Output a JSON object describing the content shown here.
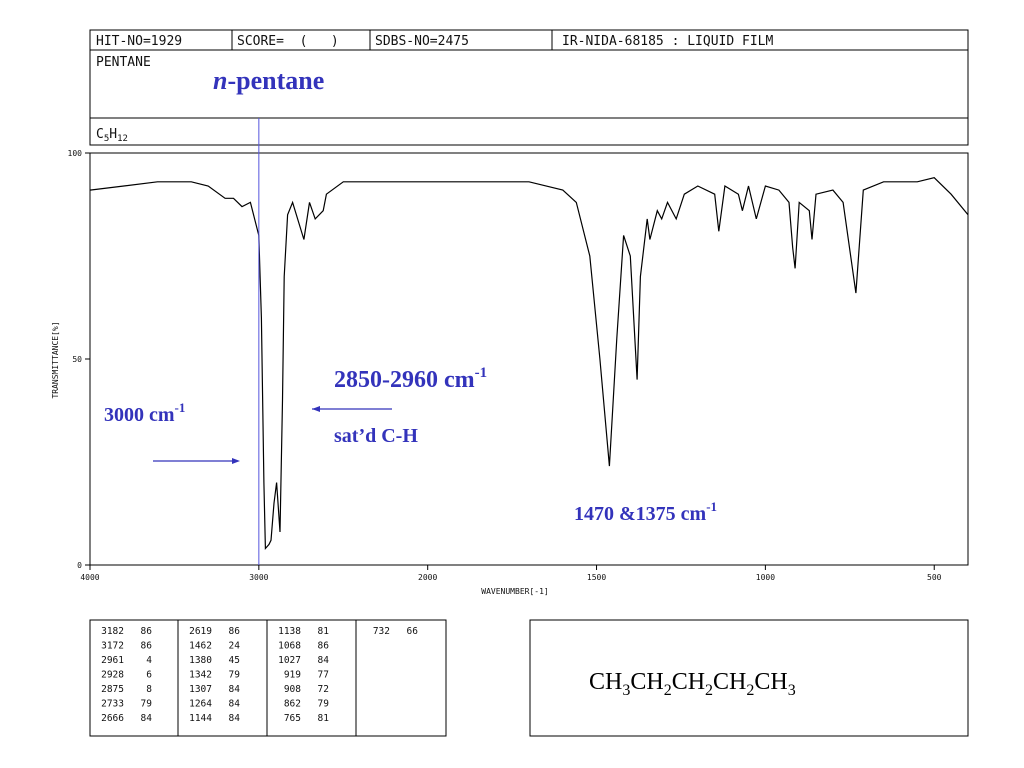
{
  "header": {
    "hit_no": "HIT-NO=1929",
    "score": "SCORE=  (   )",
    "sdbs_no": "SDBS-NO=2475",
    "method": "IR-NIDA-68185 : LIQUID FILM",
    "name": "PENTANE",
    "formula_parts": [
      "C",
      "5",
      "H",
      "12"
    ]
  },
  "annotations": {
    "compound_italic": "n",
    "compound_rest": "-pentane",
    "range_text": "2850-2960 cm",
    "range_sup": "-1",
    "range_note": "sat’d C-H",
    "mark_text": "3000 cm",
    "mark_sup": "-1",
    "marker_x": 3000,
    "bend_text": "1470 &1375 cm",
    "bend_sup": "-1"
  },
  "chart_data": {
    "type": "line",
    "color": "#000000",
    "xlabel": "WAVENUMBER[-1]",
    "ylabel": "TRANSMITTANCE[%]",
    "xlim": [
      4000,
      400
    ],
    "x_scale_break": 2000,
    "x_scale_ratio": 2,
    "xticks": [
      4000,
      3000,
      2000,
      1500,
      1000,
      500
    ],
    "ylim": [
      0,
      100
    ],
    "yticks": [
      0,
      50,
      100
    ],
    "x": [
      4000,
      3800,
      3600,
      3400,
      3300,
      3200,
      3150,
      3100,
      3050,
      3000,
      2985,
      2970,
      2961,
      2940,
      2928,
      2910,
      2895,
      2875,
      2860,
      2850,
      2830,
      2800,
      2733,
      2700,
      2666,
      2619,
      2600,
      2500,
      2300,
      2100,
      2000,
      1800,
      1700,
      1600,
      1560,
      1520,
      1490,
      1462,
      1440,
      1420,
      1400,
      1380,
      1370,
      1350,
      1342,
      1320,
      1307,
      1290,
      1264,
      1240,
      1200,
      1150,
      1138,
      1120,
      1080,
      1068,
      1050,
      1027,
      1000,
      960,
      930,
      919,
      912,
      900,
      870,
      862,
      850,
      800,
      770,
      732,
      710,
      650,
      550,
      500,
      450,
      400
    ],
    "values": [
      91,
      92,
      93,
      93,
      92,
      89,
      89,
      87,
      88,
      80,
      60,
      20,
      4,
      5,
      6,
      15,
      20,
      8,
      40,
      70,
      85,
      88,
      79,
      88,
      84,
      86,
      90,
      93,
      93,
      93,
      93,
      93,
      93,
      91,
      88,
      75,
      50,
      24,
      55,
      80,
      75,
      45,
      70,
      84,
      79,
      86,
      84,
      88,
      84,
      90,
      92,
      90,
      81,
      92,
      90,
      86,
      92,
      84,
      92,
      91,
      88,
      77,
      72,
      88,
      86,
      79,
      90,
      91,
      88,
      66,
      91,
      93,
      93,
      94,
      90,
      85
    ]
  },
  "peak_table": [
    [
      [
        "3182",
        "86"
      ],
      [
        "3172",
        "86"
      ],
      [
        "2961",
        "4"
      ],
      [
        "2928",
        "6"
      ],
      [
        "2875",
        "8"
      ],
      [
        "2733",
        "79"
      ],
      [
        "2666",
        "84"
      ]
    ],
    [
      [
        "2619",
        "86"
      ],
      [
        "1462",
        "24"
      ],
      [
        "1380",
        "45"
      ],
      [
        "1342",
        "79"
      ],
      [
        "1307",
        "84"
      ],
      [
        "1264",
        "84"
      ],
      [
        "1144",
        "84"
      ]
    ],
    [
      [
        "1138",
        "81"
      ],
      [
        "1068",
        "86"
      ],
      [
        "1027",
        "84"
      ],
      [
        "919",
        "77"
      ],
      [
        "908",
        "72"
      ],
      [
        "862",
        "79"
      ],
      [
        "765",
        "81"
      ]
    ],
    [
      [
        "732",
        "66"
      ]
    ]
  ],
  "structure": {
    "formula_parts": [
      "CH",
      "3",
      "CH",
      "2",
      "CH",
      "2",
      "CH",
      "2",
      "CH",
      "3"
    ]
  }
}
